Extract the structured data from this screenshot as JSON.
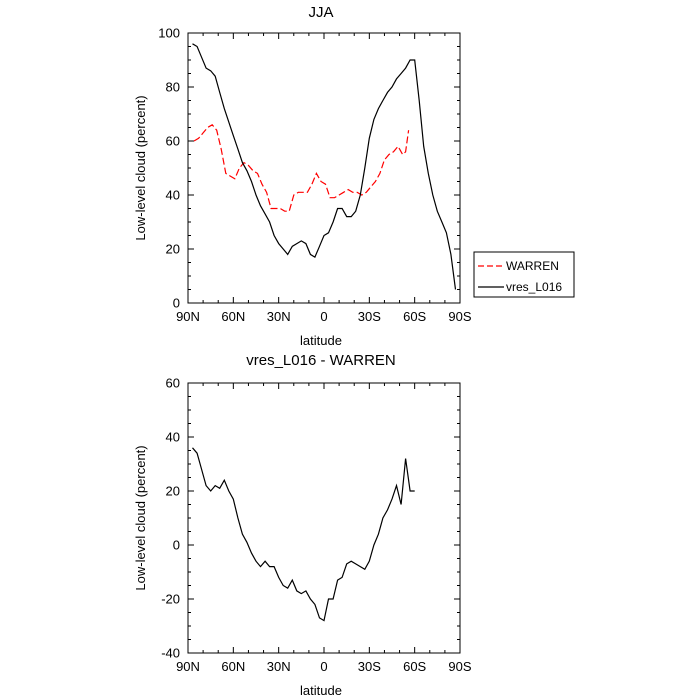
{
  "chart_data": [
    {
      "type": "line",
      "title": "JJA",
      "xlabel": "latitude",
      "ylabel": "Low-level cloud (percent)",
      "xlim": [
        90,
        -90
      ],
      "ylim": [
        0,
        100
      ],
      "x_tick_values": [
        90,
        60,
        30,
        0,
        -30,
        -60,
        -90
      ],
      "x_tick_labels": [
        "90N",
        "60N",
        "30N",
        "0",
        "30S",
        "60S",
        "90S"
      ],
      "y_tick_values": [
        0,
        20,
        40,
        60,
        80,
        100
      ],
      "y_tick_labels": [
        "0",
        "20",
        "40",
        "60",
        "80",
        "100"
      ],
      "legend_position": "outside-right",
      "series": [
        {
          "name": "WARREN",
          "color": "#ff0000",
          "dash": "dashed",
          "x": [
            86,
            83,
            80,
            77,
            74,
            71,
            68,
            65,
            62,
            59,
            56,
            53,
            50,
            47,
            44,
            41,
            38,
            35,
            32,
            29,
            26,
            23,
            20,
            17,
            14,
            11,
            8,
            5,
            2,
            -1,
            -4,
            -7,
            -10,
            -13,
            -16,
            -19,
            -22,
            -25,
            -28,
            -31,
            -34,
            -37,
            -40,
            -43,
            -46,
            -49,
            -50,
            -52,
            -54,
            -56
          ],
          "values": [
            60,
            61,
            63,
            65,
            66,
            64,
            57,
            48,
            47,
            46,
            50,
            52,
            51,
            49,
            48,
            44,
            41,
            35,
            35,
            35,
            34,
            34,
            40,
            41,
            41,
            41,
            44,
            48,
            45,
            44,
            39,
            39,
            40,
            41,
            42,
            41,
            41,
            40,
            41,
            43,
            45,
            48,
            53,
            55,
            56,
            58,
            57,
            55,
            56,
            64
          ]
        },
        {
          "name": "vres_L016",
          "color": "#000000",
          "dash": "solid",
          "x": [
            87,
            84,
            81,
            78,
            75,
            72,
            69,
            66,
            63,
            60,
            57,
            54,
            51,
            48,
            45,
            42,
            39,
            36,
            33,
            30,
            27,
            24,
            21,
            18,
            15,
            12,
            9,
            6,
            3,
            0,
            -3,
            -6,
            -9,
            -12,
            -15,
            -18,
            -21,
            -24,
            -27,
            -30,
            -33,
            -36,
            -39,
            -42,
            -45,
            -48,
            -51,
            -54,
            -57,
            -60,
            -63,
            -66,
            -69,
            -72,
            -75,
            -78,
            -81,
            -84,
            -87
          ],
          "values": [
            96,
            95,
            91,
            87,
            86,
            84,
            78,
            72,
            67,
            62,
            57,
            52,
            49,
            45,
            40,
            36,
            33,
            30,
            25,
            22,
            20,
            18,
            21,
            22,
            23,
            22,
            18,
            17,
            21,
            25,
            26,
            30,
            35,
            35,
            32,
            32,
            34,
            40,
            50,
            61,
            68,
            72,
            75,
            78,
            80,
            83,
            85,
            87,
            90,
            90,
            75,
            58,
            48,
            40,
            34,
            30,
            26,
            18,
            5
          ]
        }
      ]
    },
    {
      "type": "line",
      "title": "vres_L016 - WARREN",
      "xlabel": "latitude",
      "ylabel": "Low-level cloud (percent)",
      "xlim": [
        90,
        -90
      ],
      "ylim": [
        -40,
        60
      ],
      "x_tick_values": [
        90,
        60,
        30,
        0,
        -30,
        -60,
        -90
      ],
      "x_tick_labels": [
        "90N",
        "60N",
        "30N",
        "0",
        "30S",
        "60S",
        "90S"
      ],
      "y_tick_values": [
        -40,
        -20,
        0,
        20,
        40,
        60
      ],
      "y_tick_labels": [
        "-40",
        "-20",
        "0",
        "20",
        "40",
        "60"
      ],
      "series": [
        {
          "name": "vres_L016 - WARREN",
          "color": "#000000",
          "dash": "solid",
          "x": [
            87,
            84,
            81,
            78,
            75,
            72,
            69,
            66,
            63,
            60,
            57,
            54,
            51,
            48,
            45,
            42,
            39,
            36,
            33,
            30,
            27,
            24,
            21,
            18,
            15,
            12,
            9,
            6,
            3,
            0,
            -3,
            -6,
            -9,
            -12,
            -15,
            -18,
            -21,
            -24,
            -27,
            -30,
            -33,
            -36,
            -39,
            -42,
            -45,
            -48,
            -51,
            -54,
            -57,
            -60
          ],
          "values": [
            36,
            34,
            28,
            22,
            20,
            22,
            21,
            24,
            20,
            17,
            10,
            4,
            1,
            -3,
            -6,
            -8,
            -6,
            -8,
            -8,
            -12,
            -15,
            -16,
            -13,
            -17,
            -18,
            -17,
            -20,
            -22,
            -27,
            -28,
            -20,
            -20,
            -13,
            -12,
            -7,
            -6,
            -7,
            -8,
            -9,
            -6,
            0,
            4,
            10,
            13,
            17,
            22,
            15,
            32,
            20,
            20
          ]
        }
      ]
    }
  ],
  "legend": {
    "items": [
      {
        "label": "WARREN",
        "color": "#ff0000",
        "dash": "dashed"
      },
      {
        "label": "vres_L016",
        "color": "#000000",
        "dash": "solid"
      }
    ]
  }
}
